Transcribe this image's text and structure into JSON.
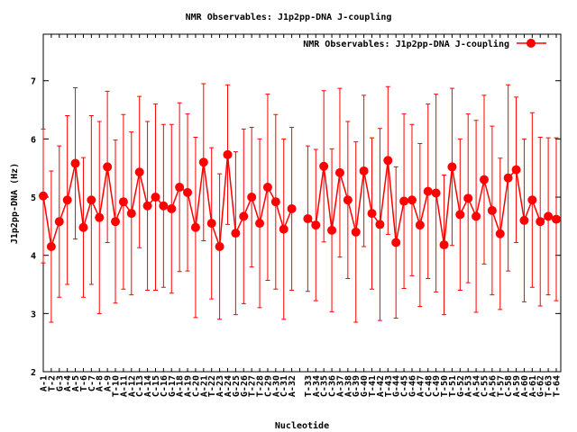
{
  "chart_data": {
    "type": "line",
    "title": "NMR Observables: J1p2pp-DNA J-coupling",
    "xlabel": "Nucleotide",
    "ylabel": "J1p2pp-DNA (Hz)",
    "categories": [
      "A-1",
      "T-2",
      "G-3",
      "A-4",
      "A-5",
      "T-6",
      "C-7",
      "A-8",
      "A-9",
      "T-10",
      "A-11",
      "A-12",
      "C-13",
      "A-14",
      "C-15",
      "C-16",
      "G-17",
      "A-18",
      "A-19",
      "C-20",
      "A-21",
      "T-22",
      "A-23",
      "A-24",
      "G-25",
      "G-26",
      "T-27",
      "T-28",
      "C-29",
      "A-30",
      "C-31",
      "A-32",
      null,
      "T-33",
      "A-34",
      "C-35",
      "C-36",
      "A-37",
      "A-38",
      "G-39",
      "G-40",
      "T-41",
      "A-42",
      "T-43",
      "G-44",
      "C-45",
      "G-46",
      "A-47",
      "C-48",
      "C-49",
      "T-50",
      "T-51",
      "G-52",
      "A-53",
      "A-54",
      "C-55",
      "A-56",
      "T-57",
      "C-58",
      "A-59",
      "A-60",
      "A-61",
      "G-62",
      "T-63",
      "T-64"
    ],
    "series": [
      {
        "name": "NMR Observables: J1p2pp-DNA J-coupling",
        "color": "#ff0000",
        "values": [
          5.02,
          4.15,
          4.58,
          4.95,
          5.58,
          4.48,
          4.95,
          4.65,
          5.52,
          4.58,
          4.92,
          4.72,
          5.43,
          4.85,
          5.0,
          4.85,
          4.8,
          5.17,
          5.08,
          4.48,
          5.6,
          4.55,
          4.15,
          5.73,
          4.38,
          4.67,
          5.0,
          4.55,
          5.17,
          4.92,
          4.45,
          4.8,
          null,
          4.63,
          4.52,
          5.53,
          4.43,
          5.42,
          4.95,
          4.4,
          5.45,
          4.72,
          4.53,
          5.63,
          4.22,
          4.93,
          4.95,
          4.52,
          5.1,
          5.07,
          4.18,
          5.52,
          4.7,
          4.98,
          4.67,
          5.3,
          4.77,
          4.37,
          5.33,
          5.47,
          4.6,
          4.95,
          4.58,
          4.67,
          4.62
        ],
        "errors": [
          1.15,
          1.3,
          1.3,
          1.45,
          1.3,
          1.2,
          1.45,
          1.65,
          1.3,
          1.4,
          1.5,
          1.4,
          1.3,
          1.45,
          1.6,
          1.4,
          1.45,
          1.45,
          1.35,
          1.55,
          1.35,
          1.3,
          1.25,
          1.2,
          1.4,
          1.5,
          1.2,
          1.45,
          1.6,
          1.5,
          1.55,
          1.4,
          null,
          1.25,
          1.3,
          1.3,
          1.4,
          1.45,
          1.35,
          1.55,
          1.3,
          1.3,
          1.65,
          1.27,
          1.3,
          1.5,
          1.3,
          1.4,
          1.5,
          1.7,
          1.2,
          1.35,
          1.3,
          1.45,
          1.65,
          1.45,
          1.45,
          1.3,
          1.6,
          1.25,
          1.4,
          1.5,
          1.45,
          1.35,
          1.4
        ]
      }
    ],
    "ylim": [
      2,
      7.8
    ],
    "yticks": [
      2,
      3,
      4,
      5,
      6,
      7
    ],
    "grid": false,
    "legend": "upper right"
  }
}
